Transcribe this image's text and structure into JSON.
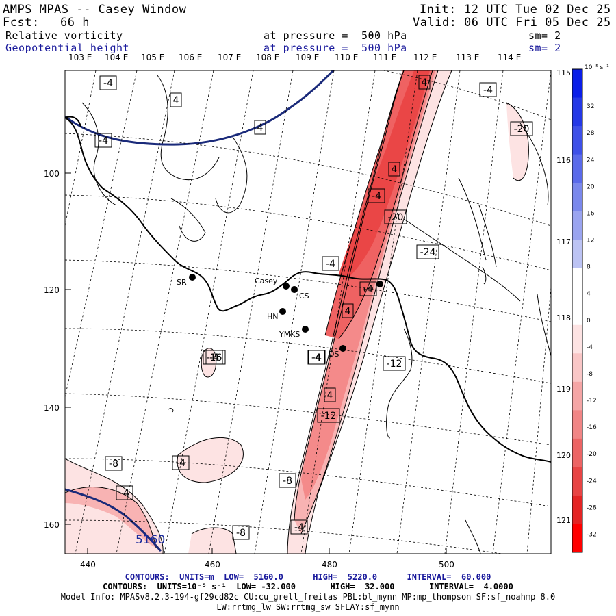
{
  "header": {
    "title": "AMPS MPAS -- Casey Window",
    "init_label": "Init:",
    "init_value": "12 UTC Tue 02 Dec 25",
    "fcst_label": "Fcst:",
    "fcst_value": "66 h",
    "valid_label": "Valid:",
    "valid_value": "06 UTC Fri 05 Dec 25",
    "field1_name": "Relative vorticity",
    "field1_level": "at pressure =  500 hPa",
    "field1_smooth": "sm= 2",
    "field2_name": "Geopotential height",
    "field2_level": "at pressure =  500 hPa",
    "field2_smooth": "sm= 2"
  },
  "map": {
    "top_lon_labels": [
      "103 E",
      "104 E",
      "105 E",
      "106 E",
      "107 E",
      "108 E",
      "109 E",
      "110 E",
      "111 E",
      "112 E",
      "113 E",
      "114 E"
    ],
    "right_lon_labels": [
      "115 E",
      "116 E",
      "117 E",
      "118 E",
      "119 E",
      "120 E",
      "121 E"
    ],
    "x_ticks": [
      "440",
      "460",
      "480",
      "500"
    ],
    "y_ticks": [
      "100",
      "120",
      "140",
      "160"
    ],
    "stations": [
      "SR",
      "Casey",
      "CS",
      "HN",
      "YMKS",
      "CP",
      "DS"
    ],
    "height_contour_label": "5160",
    "vorticity_labels": [
      "-4",
      "4",
      "4",
      "-4",
      "4",
      "-4",
      "-20",
      "4",
      "-4",
      "-20",
      "-24",
      "-4",
      "4",
      "-4",
      "-16",
      "-12",
      "-4",
      "4",
      "-12",
      "-8",
      "-4",
      "-4",
      "-8",
      "-4",
      "-8",
      "-4",
      "-4"
    ],
    "colors": {
      "height_contour": "#1a2a7a",
      "coast": "#000000",
      "neg_fill_1": "#fde3e3",
      "neg_fill_2": "#f8b3b3",
      "neg_fill_3": "#f48a8a",
      "neg_fill_4": "#ef6262",
      "neg_fill_5": "#ea4646"
    }
  },
  "colorbar": {
    "units": "10⁻⁵ s⁻¹",
    "labels": [
      "32",
      "28",
      "24",
      "20",
      "16",
      "12",
      "8",
      "4",
      "0",
      "-4",
      "-8",
      "-12",
      "-16",
      "-20",
      "-24",
      "-28",
      "-32"
    ],
    "colors": [
      "#0a1ee8",
      "#2438e6",
      "#3e50e8",
      "#5a6aea",
      "#7a88ec",
      "#9aa4f0",
      "#bcc3f4",
      "#ffffff",
      "#ffffff",
      "#fde3e3",
      "#f9c6c6",
      "#f5a5a5",
      "#f18585",
      "#ec6464",
      "#e84444",
      "#e42424",
      "#ff0000"
    ]
  },
  "footer": {
    "line1_a": "CONTOURS:  UNITS=m  LOW=  5160.0",
    "line1_b": "HIGH=  5220.0",
    "line1_c": "INTERVAL=  60.000",
    "line2_a": "CONTOURS:  UNITS=10⁻⁵ s⁻¹  LOW= -32.000",
    "line2_b": "HIGH=  32.000",
    "line2_c": "INTERVAL=  4.0000",
    "line3": "Model Info: MPASv8.2.3-194-gf29cd82c CU:cu_grell_freitas PBL:bl_mynn MP:mp_thompson SF:sf_noahmp 8.0",
    "line4": "LW:rrtmg_lw SW:rrtmg_sw SFLAY:sf_mynn"
  }
}
